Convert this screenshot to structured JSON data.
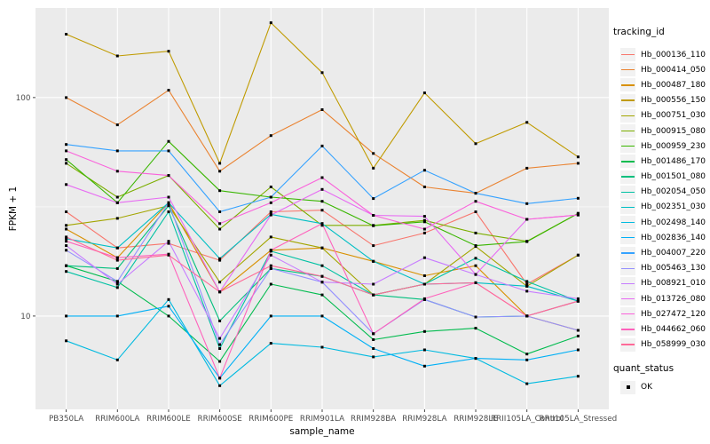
{
  "chart_data": {
    "type": "line",
    "title": "",
    "xlabel": "sample_name",
    "ylabel": "FPKM + 1",
    "y_scale": "log10",
    "y_ticks": [
      10,
      100
    ],
    "y_minor_ticks": [
      31.6
    ],
    "ylim": [
      3.74,
      257
    ],
    "grid": "on",
    "panel_bg": "#EBEBEB",
    "grid_color": "#FFFFFF",
    "tick_color": "#333333",
    "tick_label_color": "#4D4D4D",
    "point_shape": "square",
    "point_color": "#000000",
    "legend_position": "right",
    "categories": [
      "PB350LA",
      "RRIM600LA",
      "RRIM600LE",
      "RRIM600SE",
      "RRIM600PE",
      "RRIM901LA",
      "RRIM928BA",
      "RRIM928LA",
      "RRIM928LE",
      "RRII105LA_Control",
      "RRII105LA_Stressed"
    ],
    "series": [
      {
        "name": "Hb_000136_110",
        "color": "#F8766D",
        "values": [
          30,
          20.5,
          21.5,
          18,
          30,
          30.5,
          21,
          24,
          30,
          14,
          19
        ]
      },
      {
        "name": "Hb_000414_050",
        "color": "#EA8331",
        "values": [
          100,
          75,
          108,
          46,
          67,
          88,
          55.5,
          39,
          36.5,
          47.5,
          50
        ]
      },
      {
        "name": "Hb_000487_180",
        "color": "#D89000",
        "values": [
          25,
          18.5,
          33,
          12.9,
          20,
          20.5,
          17.8,
          15.3,
          17,
          10,
          8.6
        ]
      },
      {
        "name": "Hb_000556_150",
        "color": "#C09B00",
        "values": [
          195,
          155,
          163,
          50,
          220,
          130,
          47.5,
          105,
          61.5,
          77,
          53.5
        ]
      },
      {
        "name": "Hb_000751_030",
        "color": "#A3A500",
        "values": [
          26,
          28,
          32,
          14.3,
          23,
          20.5,
          12.5,
          14,
          20.8,
          13.7,
          19
        ]
      },
      {
        "name": "Hb_000915_080",
        "color": "#7CAE00",
        "values": [
          50,
          35,
          44,
          25,
          39,
          26,
          26,
          27.4,
          24,
          22,
          29.5
        ]
      },
      {
        "name": "Hb_000959_230",
        "color": "#39B600",
        "values": [
          52,
          33,
          63,
          37.5,
          35,
          33.5,
          25.9,
          27,
          21,
          21.9,
          29.5
        ]
      },
      {
        "name": "Hb_001486_170",
        "color": "#00BB4E",
        "values": [
          17,
          14.4,
          10,
          6.2,
          14,
          12.5,
          7.8,
          8.5,
          8.8,
          6.7,
          8.1
        ]
      },
      {
        "name": "Hb_001501_080",
        "color": "#00BF7D",
        "values": [
          17,
          16.5,
          32,
          9.5,
          16.5,
          15.2,
          12.5,
          11.9,
          9.9,
          10,
          11.7
        ]
      },
      {
        "name": "Hb_002054_050",
        "color": "#00C1A3",
        "values": [
          16,
          13.5,
          30,
          7.1,
          19.8,
          17,
          12.5,
          14,
          18.4,
          14.4,
          11.7
        ]
      },
      {
        "name": "Hb_002351_030",
        "color": "#00BFC4",
        "values": [
          22.6,
          20.5,
          33,
          18.3,
          29.2,
          26.5,
          17.8,
          14,
          14.2,
          13.7,
          11.7
        ]
      },
      {
        "name": "Hb_002498_140",
        "color": "#00BAE0",
        "values": [
          7.7,
          6.3,
          11.9,
          4.8,
          7.5,
          7.2,
          6.5,
          7,
          6.4,
          4.9,
          5.3
        ]
      },
      {
        "name": "Hb_002836_140",
        "color": "#00B0F6",
        "values": [
          10,
          10,
          11.1,
          5.2,
          10,
          10,
          7.1,
          5.9,
          6.4,
          6.3,
          7
        ]
      },
      {
        "name": "Hb_004007_220",
        "color": "#35A2FF",
        "values": [
          61,
          57,
          57,
          30,
          35,
          60,
          34.5,
          46.5,
          36.5,
          32.7,
          34.6
        ]
      },
      {
        "name": "Hb_005463_130",
        "color": "#9590FF",
        "values": [
          20,
          14.4,
          33,
          7.4,
          16.5,
          14.3,
          8.3,
          11.9,
          9.9,
          10,
          8.6
        ]
      },
      {
        "name": "Hb_008921_010",
        "color": "#C77CFF",
        "values": [
          21,
          14,
          22,
          7.9,
          19,
          14.3,
          14,
          18.5,
          15.5,
          13,
          12
        ]
      },
      {
        "name": "Hb_013726_080",
        "color": "#E76BF3",
        "values": [
          40,
          33,
          35,
          12.9,
          29,
          38,
          28.9,
          28.6,
          15.5,
          27.7,
          29
        ]
      },
      {
        "name": "Hb_027472_120",
        "color": "#FA62DB",
        "values": [
          57,
          46,
          44,
          26.5,
          33,
          43,
          28.9,
          25,
          33.5,
          27.7,
          29
        ]
      },
      {
        "name": "Hb_044662_060",
        "color": "#FF62BC",
        "values": [
          22,
          18.5,
          19.2,
          5.2,
          20,
          26.5,
          8.3,
          12,
          14.2,
          10,
          11.7
        ]
      },
      {
        "name": "Hb_058999_030",
        "color": "#FF6A98",
        "values": [
          23,
          18,
          19,
          12.9,
          17,
          15.2,
          12.5,
          14,
          14.2,
          10,
          11.7
        ]
      }
    ],
    "legend": {
      "tracking_title": "tracking_id",
      "quant_title": "quant_status",
      "quant_items": [
        {
          "label": "OK"
        }
      ]
    }
  }
}
